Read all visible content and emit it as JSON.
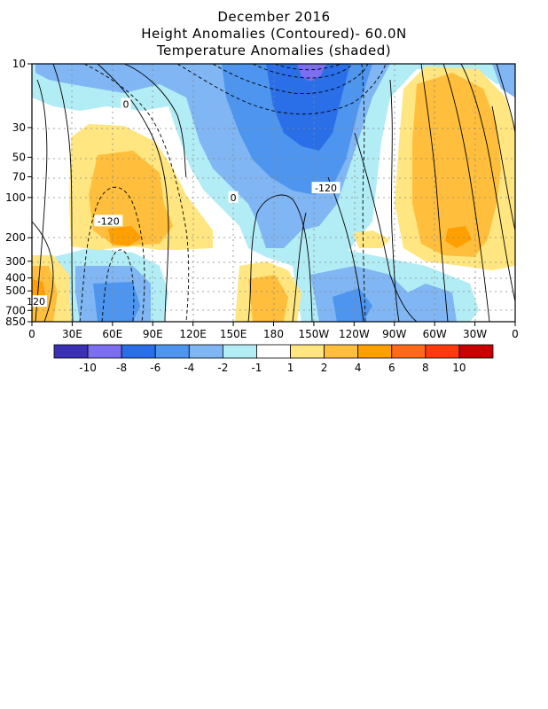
{
  "chart_data": {
    "type": "heatmap",
    "title": "December 2016",
    "subtitle_1": "Height Anomalies (Contoured)- 60.0N",
    "subtitle_2": "Temperature Anomalies (shaded)",
    "xlabel": "",
    "ylabel": "",
    "x_tick_labels": [
      "0",
      "30E",
      "60E",
      "90E",
      "120E",
      "150E",
      "180",
      "150W",
      "120W",
      "90W",
      "60W",
      "30W",
      "0"
    ],
    "y_tick_labels": [
      "10",
      "30",
      "50",
      "70",
      "100",
      "200",
      "300",
      "400",
      "500",
      "700",
      "850"
    ],
    "y_scale": "log",
    "xlim": [
      0,
      360
    ],
    "ylim": [
      850,
      10
    ],
    "grid": true,
    "colorbar": {
      "labels": [
        "-10",
        "-8",
        "-6",
        "-4",
        "-2",
        "-1",
        "1",
        "2",
        "4",
        "6",
        "8",
        "10"
      ],
      "colors": [
        "#3a2fb5",
        "#7b6ef0",
        "#2a6fe8",
        "#4d95ee",
        "#7fb6f3",
        "#b2ecf5",
        "#ffffff",
        "#ffe680",
        "#ffbe3c",
        "#ff9f00",
        "#ff6a1a",
        "#ff3a0d",
        "#c80000"
      ]
    },
    "contour_labels": [
      {
        "text": "0",
        "lon": 70,
        "p": 20
      },
      {
        "text": "-120",
        "lon": 57,
        "p": 150
      },
      {
        "text": "0",
        "lon": 150,
        "p": 100
      },
      {
        "text": "-120",
        "lon": 219,
        "p": 85
      },
      {
        "text": "120",
        "lon": 3,
        "p": 600
      }
    ]
  }
}
